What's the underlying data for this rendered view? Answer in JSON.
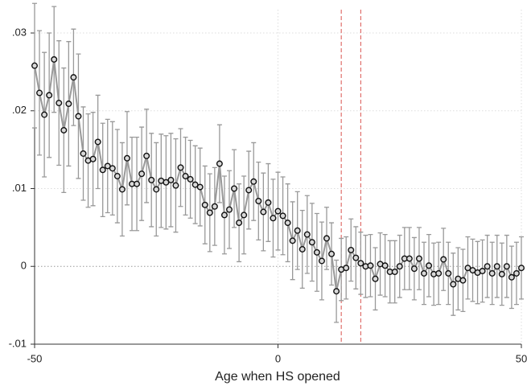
{
  "chart_data": {
    "type": "errorbar",
    "xlabel": "Age when HS opened",
    "x": [
      -50,
      -49,
      -48,
      -47,
      -46,
      -45,
      -44,
      -43,
      -42,
      -41,
      -40,
      -39,
      -38,
      -37,
      -36,
      -35,
      -34,
      -33,
      -32,
      -31,
      -30,
      -29,
      -28,
      -27,
      -26,
      -25,
      -24,
      -23,
      -22,
      -21,
      -20,
      -19,
      -18,
      -17,
      -16,
      -15,
      -14,
      -13,
      -12,
      -11,
      -10,
      -9,
      -8,
      -7,
      -6,
      -5,
      -4,
      -3,
      -2,
      -1,
      0,
      1,
      2,
      3,
      4,
      5,
      6,
      7,
      8,
      9,
      10,
      11,
      12,
      13,
      14,
      15,
      16,
      17,
      18,
      19,
      20,
      21,
      22,
      23,
      24,
      25,
      26,
      27,
      28,
      29,
      30,
      31,
      32,
      33,
      34,
      35,
      36,
      37,
      38,
      39,
      40,
      41,
      42,
      43,
      44,
      45,
      46,
      47,
      48,
      49,
      50
    ],
    "values": [
      0.0258,
      0.0223,
      0.0195,
      0.022,
      0.0266,
      0.021,
      0.0175,
      0.0209,
      0.0243,
      0.0193,
      0.0145,
      0.0136,
      0.0138,
      0.016,
      0.0124,
      0.0129,
      0.0126,
      0.0116,
      0.0099,
      0.0139,
      0.0106,
      0.0106,
      0.0119,
      0.0142,
      0.0111,
      0.0099,
      0.011,
      0.0108,
      0.0111,
      0.0104,
      0.0127,
      0.0116,
      0.0112,
      0.0105,
      0.0102,
      0.0079,
      0.0069,
      0.0077,
      0.0132,
      0.0066,
      0.0073,
      0.01,
      0.0056,
      0.0066,
      0.0098,
      0.0109,
      0.0084,
      0.007,
      0.0082,
      0.0062,
      0.0071,
      0.0065,
      0.0056,
      0.0033,
      0.0046,
      0.0022,
      0.0041,
      0.0031,
      0.0018,
      0.0007,
      0.0036,
      0.0016,
      -0.0032,
      -0.0004,
      -0.0002,
      0.0021,
      0.0011,
      0.0004,
      0.0,
      0.0001,
      -0.0016,
      0.0003,
      0.0001,
      -0.0007,
      -0.0007,
      0.0,
      0.001,
      0.001,
      -0.0003,
      0.001,
      -0.0009,
      0.0001,
      -0.001,
      -0.0009,
      0.0009,
      -0.0009,
      -0.0023,
      -0.0016,
      -0.0018,
      -0.0002,
      -0.0005,
      -0.0008,
      -0.0006,
      0.0,
      -0.0009,
      0.0,
      -0.001,
      0.0,
      -0.0014,
      -0.0009,
      -0.0002
    ],
    "errors": [
      0.008,
      0.008,
      0.008,
      0.008,
      0.0068,
      0.008,
      0.008,
      0.008,
      0.0062,
      0.008,
      0.006,
      0.006,
      0.006,
      0.006,
      0.006,
      0.006,
      0.006,
      0.006,
      0.006,
      0.006,
      0.006,
      0.006,
      0.006,
      0.006,
      0.006,
      0.006,
      0.006,
      0.006,
      0.006,
      0.006,
      0.005,
      0.005,
      0.005,
      0.005,
      0.005,
      0.005,
      0.005,
      0.005,
      0.005,
      0.005,
      0.005,
      0.005,
      0.005,
      0.005,
      0.005,
      0.005,
      0.005,
      0.005,
      0.005,
      0.005,
      0.005,
      0.005,
      0.005,
      0.005,
      0.005,
      0.005,
      0.005,
      0.005,
      0.005,
      0.005,
      0.004,
      0.004,
      0.004,
      0.004,
      0.004,
      0.004,
      0.004,
      0.004,
      0.004,
      0.004,
      0.004,
      0.004,
      0.004,
      0.004,
      0.004,
      0.004,
      0.004,
      0.004,
      0.004,
      0.004,
      0.004,
      0.004,
      0.004,
      0.004,
      0.004,
      0.004,
      0.004,
      0.004,
      0.004,
      0.004,
      0.004,
      0.004,
      0.004,
      0.004,
      0.004,
      0.004,
      0.004,
      0.004,
      0.004,
      0.004,
      0.004
    ],
    "xlim": [
      -50,
      50
    ],
    "xticks": [
      -50,
      0,
      50
    ],
    "ylim": [
      -0.01,
      0.033
    ],
    "yticks": [
      {
        "value": -0.01,
        "label": "-.01"
      },
      {
        "value": 0,
        "label": "0"
      },
      {
        "value": 0.01,
        "label": ".01"
      },
      {
        "value": 0.02,
        "label": ".02"
      },
      {
        "value": 0.03,
        "label": ".03"
      }
    ],
    "grid": true,
    "color": "#999999",
    "vlines": [
      {
        "value": 13,
        "color": "#d9534f"
      },
      {
        "value": 17,
        "color": "#d9534f"
      }
    ]
  }
}
